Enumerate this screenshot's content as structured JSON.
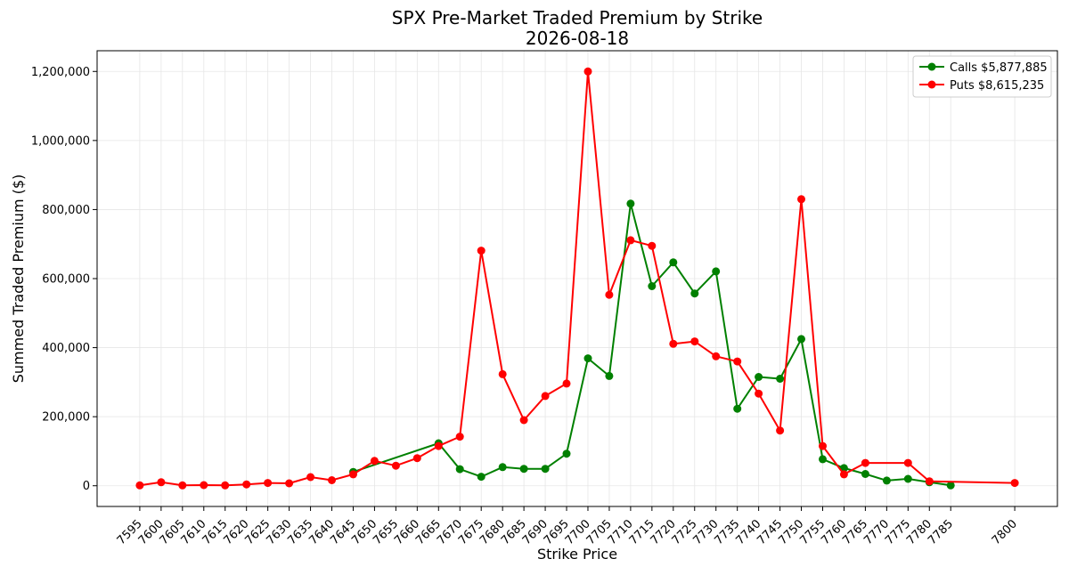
{
  "chart_data": {
    "type": "line",
    "title": "SPX Pre-Market Traded Premium by Strike",
    "subtitle": "2026-08-18",
    "xlabel": "Strike Price",
    "ylabel": "Summed Traded Premium ($)",
    "xlim": [
      7585,
      7810
    ],
    "ylim": [
      -60000,
      1260000
    ],
    "x_ticks": [
      7595,
      7600,
      7605,
      7610,
      7615,
      7620,
      7625,
      7630,
      7635,
      7640,
      7645,
      7650,
      7655,
      7660,
      7665,
      7670,
      7675,
      7680,
      7685,
      7690,
      7695,
      7700,
      7705,
      7710,
      7715,
      7720,
      7725,
      7730,
      7735,
      7740,
      7745,
      7750,
      7755,
      7760,
      7765,
      7770,
      7775,
      7780,
      7785,
      7800
    ],
    "y_ticks": [
      0,
      200000,
      400000,
      600000,
      800000,
      1000000,
      1200000
    ],
    "y_tick_labels": [
      "0",
      "200,000",
      "400,000",
      "600,000",
      "800,000",
      "1,000,000",
      "1,200,000"
    ],
    "grid": true,
    "legend_position": "top-right",
    "series": [
      {
        "name": "Calls $5,877,885",
        "color": "#008000",
        "x": [
          7645,
          7665,
          7670,
          7675,
          7680,
          7685,
          7690,
          7695,
          7700,
          7705,
          7710,
          7715,
          7720,
          7725,
          7730,
          7735,
          7740,
          7745,
          7750,
          7755,
          7760,
          7765,
          7770,
          7775,
          7780,
          7785
        ],
        "values": [
          40000,
          123000,
          48000,
          26000,
          54000,
          49000,
          49000,
          93000,
          369000,
          318000,
          817000,
          578000,
          647000,
          557000,
          621000,
          223000,
          315000,
          310000,
          425000,
          77000,
          51000,
          34000,
          15000,
          20000,
          10000,
          1000
        ]
      },
      {
        "name": "Puts $8,615,235",
        "color": "#ff0000",
        "x": [
          7595,
          7600,
          7605,
          7610,
          7615,
          7620,
          7625,
          7630,
          7635,
          7640,
          7645,
          7650,
          7655,
          7660,
          7665,
          7670,
          7675,
          7680,
          7685,
          7690,
          7695,
          7700,
          7705,
          7710,
          7715,
          7720,
          7725,
          7730,
          7735,
          7740,
          7745,
          7750,
          7755,
          7760,
          7765,
          7775,
          7780,
          7800
        ],
        "values": [
          1000,
          10000,
          1000,
          2000,
          1000,
          4000,
          8000,
          7000,
          25000,
          16000,
          33000,
          72000,
          58000,
          80000,
          115000,
          142000,
          681000,
          323000,
          190000,
          260000,
          296000,
          1200000,
          553000,
          711000,
          695000,
          411000,
          418000,
          375000,
          360000,
          267000,
          160000,
          830000,
          115000,
          33000,
          66000,
          66000,
          13000,
          8000
        ]
      }
    ]
  }
}
